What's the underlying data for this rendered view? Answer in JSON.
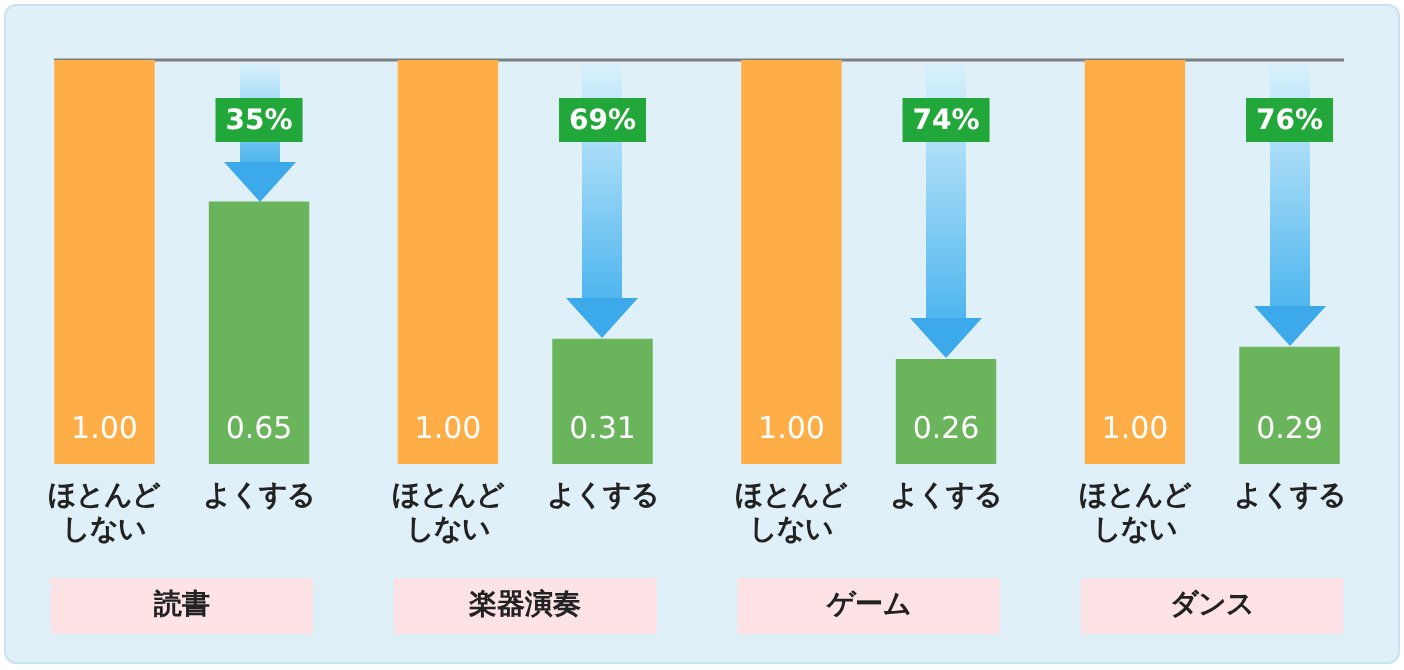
{
  "chart_data": {
    "type": "bar",
    "categories": [
      "読書",
      "楽器演奏",
      "ゲーム",
      "ダンス"
    ],
    "series": [
      {
        "name": "ほとんどしない",
        "color": "#ffad47",
        "values": [
          1.0,
          1.0,
          1.0,
          1.0
        ],
        "value_labels": [
          "1.00",
          "1.00",
          "1.00",
          "1.00"
        ]
      },
      {
        "name": "よくする",
        "color": "#6ab45b",
        "values": [
          0.65,
          0.31,
          0.26,
          0.29
        ],
        "value_labels": [
          "0.65",
          "0.31",
          "0.26",
          "0.29"
        ]
      }
    ],
    "ylim": [
      0,
      1
    ],
    "legend": false,
    "ref_lines": [
      {
        "axis": "y",
        "value": 1,
        "color": "#7f7f7f"
      }
    ],
    "annotations": [
      "35%",
      "69%",
      "74%",
      "76%"
    ]
  }
}
